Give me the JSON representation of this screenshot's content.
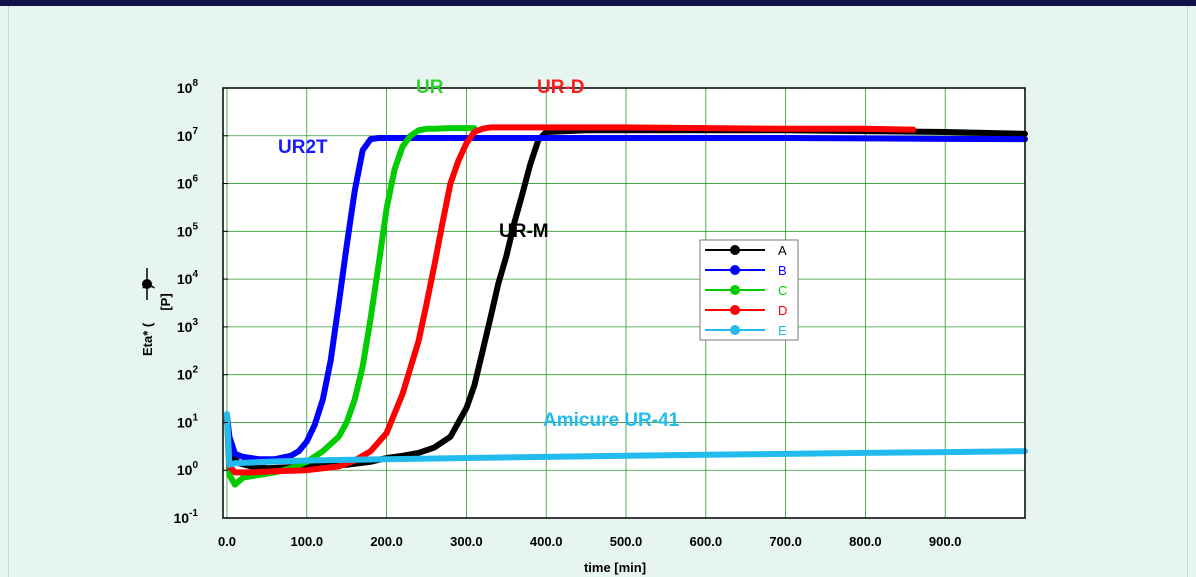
{
  "chart_data": {
    "type": "line",
    "xlabel": "time [min]",
    "ylabel_line1": "Eta* (",
    "ylabel_line2": ")",
    "ylabel_unit": "[P]",
    "x_ticks": [
      "0.0",
      "100.0",
      "200.0",
      "300.0",
      "400.0",
      "500.0",
      "600.0",
      "700.0",
      "800.0",
      "900.0"
    ],
    "x_tick_values": [
      0,
      100,
      200,
      300,
      400,
      500,
      600,
      700,
      800,
      900
    ],
    "xlim": [
      -5,
      1000
    ],
    "y_scale": "log",
    "ylim": [
      0.1,
      100000000
    ],
    "y_tick_bases": [
      "10",
      "10",
      "10",
      "10",
      "10",
      "10",
      "10",
      "10",
      "10",
      "10"
    ],
    "y_tick_exponents": [
      "-1",
      "0",
      "1",
      "2",
      "3",
      "4",
      "5",
      "6",
      "7",
      "8"
    ],
    "y_tick_values": [
      0.1,
      1,
      10,
      100,
      1000,
      10000,
      100000,
      1000000,
      10000000,
      100000000
    ],
    "grid": true,
    "legend_placement": "center-right",
    "series": [
      {
        "name": "A",
        "color": "#000000",
        "x": [
          0,
          3,
          8,
          15,
          30,
          50,
          80,
          100,
          120,
          150,
          180,
          200,
          220,
          240,
          260,
          280,
          300,
          310,
          320,
          330,
          340,
          350,
          360,
          370,
          380,
          390,
          400,
          450,
          500,
          600,
          700,
          800,
          900,
          1000
        ],
        "y": [
          12,
          2.5,
          1.8,
          1.4,
          1.2,
          1.1,
          1.15,
          1.2,
          1.25,
          1.3,
          1.5,
          1.8,
          2,
          2.3,
          3,
          5,
          20,
          60,
          300,
          1500,
          8000,
          30000,
          150000,
          600000,
          2500000,
          8000000,
          12000000,
          13000000,
          13000000,
          13000000,
          13000000,
          12500000,
          12000000,
          11000000
        ]
      },
      {
        "name": "B",
        "color": "#0000ff",
        "x": [
          0,
          3,
          10,
          20,
          40,
          60,
          80,
          90,
          100,
          110,
          120,
          130,
          140,
          150,
          160,
          170,
          180,
          190,
          200,
          300,
          400,
          500,
          600,
          700,
          800,
          900,
          1000
        ],
        "y": [
          14,
          5,
          2.2,
          1.9,
          1.7,
          1.7,
          2,
          2.5,
          4,
          9,
          30,
          200,
          3000,
          50000,
          700000,
          5000000,
          8500000,
          9000000,
          9000000,
          9000000,
          9000000,
          9000000,
          9000000,
          9000000,
          8800000,
          8600000,
          8500000
        ]
      },
      {
        "name": "C",
        "color": "#00cc00",
        "x": [
          0,
          3,
          10,
          20,
          40,
          60,
          80,
          100,
          120,
          140,
          150,
          160,
          170,
          180,
          190,
          200,
          210,
          220,
          230,
          240,
          250,
          260,
          280,
          300,
          310
        ],
        "y": [
          12,
          0.8,
          0.5,
          0.7,
          0.8,
          0.9,
          1.1,
          1.5,
          2.5,
          5,
          10,
          30,
          150,
          1500,
          20000,
          300000,
          2000000,
          6000000,
          10000000,
          13000000,
          14000000,
          14000000,
          14500000,
          14500000,
          14500000
        ]
      },
      {
        "name": "D",
        "color": "#ff0000",
        "x": [
          0,
          3,
          10,
          30,
          60,
          100,
          140,
          160,
          180,
          200,
          220,
          240,
          250,
          260,
          270,
          280,
          290,
          300,
          310,
          320,
          330,
          340,
          350,
          400,
          500,
          600,
          700,
          800,
          860
        ],
        "y": [
          14,
          1.2,
          0.9,
          0.9,
          0.95,
          1,
          1.2,
          1.6,
          2.5,
          6,
          40,
          500,
          3000,
          20000,
          150000,
          1000000,
          3000000,
          7000000,
          12000000,
          14000000,
          15000000,
          15000000,
          15000000,
          15000000,
          15000000,
          14500000,
          14000000,
          14000000,
          13500000
        ]
      },
      {
        "name": "E",
        "color": "#22bbee",
        "x": [
          0,
          3,
          10,
          50,
          100,
          200,
          300,
          400,
          500,
          600,
          700,
          800,
          900,
          1000
        ],
        "y": [
          15,
          1.3,
          1.4,
          1.5,
          1.6,
          1.7,
          1.8,
          1.9,
          2.0,
          2.1,
          2.2,
          2.3,
          2.4,
          2.5
        ]
      }
    ],
    "annotations": [
      {
        "text": "UR2T",
        "color": "#1a1aff"
      },
      {
        "text": "UR",
        "color": "#33cc33"
      },
      {
        "text": "UR-D",
        "color": "#ff1a1a"
      },
      {
        "text": "UR-M",
        "color": "#000000"
      },
      {
        "text": "Amicure UR-41",
        "color": "#22bbee"
      }
    ]
  }
}
